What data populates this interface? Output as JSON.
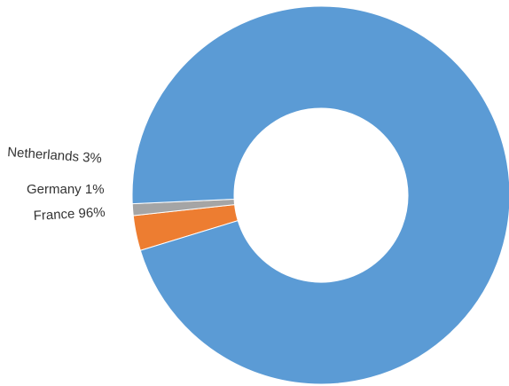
{
  "chart_data": {
    "type": "pie",
    "variant": "donut",
    "title": "",
    "slices": [
      {
        "name": "Netherlands",
        "label": "Netherlands 3%",
        "value": 3,
        "color": "#ED7D31"
      },
      {
        "name": "Germany",
        "label": "Germany 1%",
        "value": 1,
        "color": "#A5A5A5"
      },
      {
        "name": "France",
        "label": "France 96%",
        "value": 96,
        "color": "#5B9BD5"
      }
    ]
  }
}
